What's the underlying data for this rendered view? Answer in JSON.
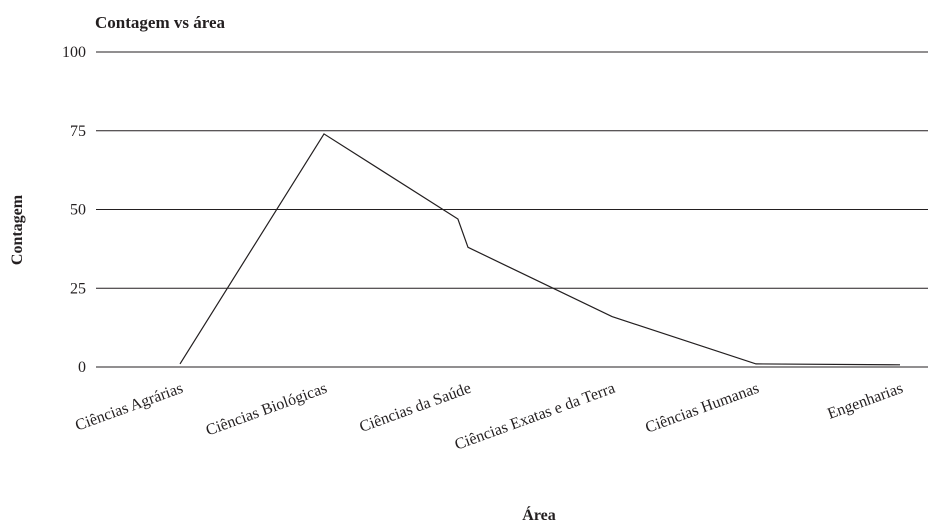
{
  "chart_data": {
    "type": "line",
    "title": "Contagem vs área",
    "xlabel": "Área",
    "ylabel": "Contagem",
    "categories": [
      "Ciências Agrárias",
      "Ciências Biológicas",
      "Ciências da Saúde",
      "Ciências Exatas e da Terra",
      "Ciências Humanas",
      "Engenharias"
    ],
    "x": [
      0,
      1,
      1.93,
      2,
      3,
      4,
      5
    ],
    "y": [
      1,
      74,
      47,
      38,
      16,
      1,
      0.7
    ],
    "ylim": [
      0,
      100
    ],
    "yticks": [
      0,
      25,
      50,
      75,
      100
    ],
    "grid": true,
    "legend": "none",
    "colors": {
      "line": "#231f20",
      "grid": "#231f20",
      "text": "#231f20"
    }
  }
}
